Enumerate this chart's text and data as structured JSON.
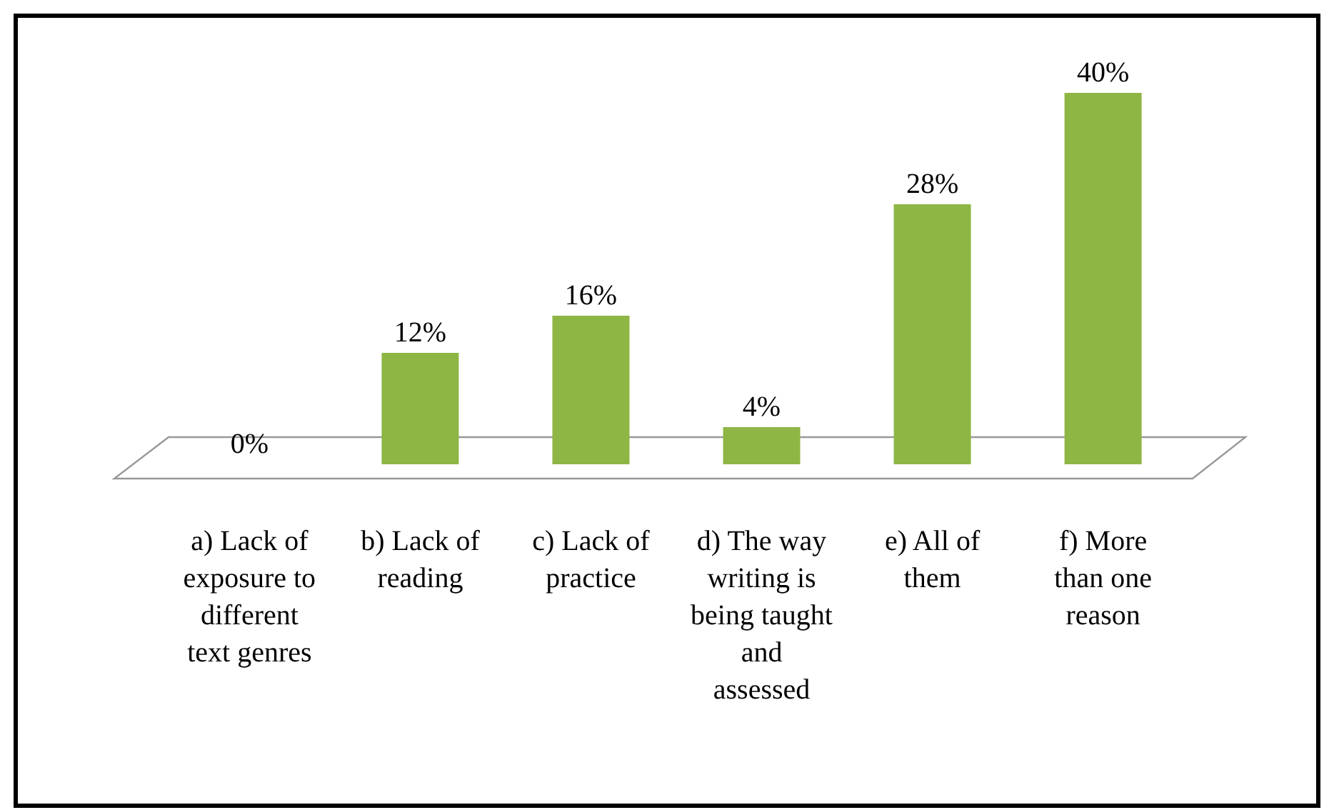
{
  "chart_data": {
    "type": "bar",
    "categories": [
      "a) Lack of exposure to different text genres",
      "b) Lack of reading",
      "c) Lack of practice",
      "d) The way writing is being taught and assessed",
      "e) All of them",
      "f) More than one reason"
    ],
    "values": [
      0,
      12,
      16,
      4,
      28,
      40
    ],
    "color": "#8db644",
    "value_labels": [
      "0%",
      "12%",
      "16%",
      "4%",
      "28%",
      "40%"
    ]
  }
}
